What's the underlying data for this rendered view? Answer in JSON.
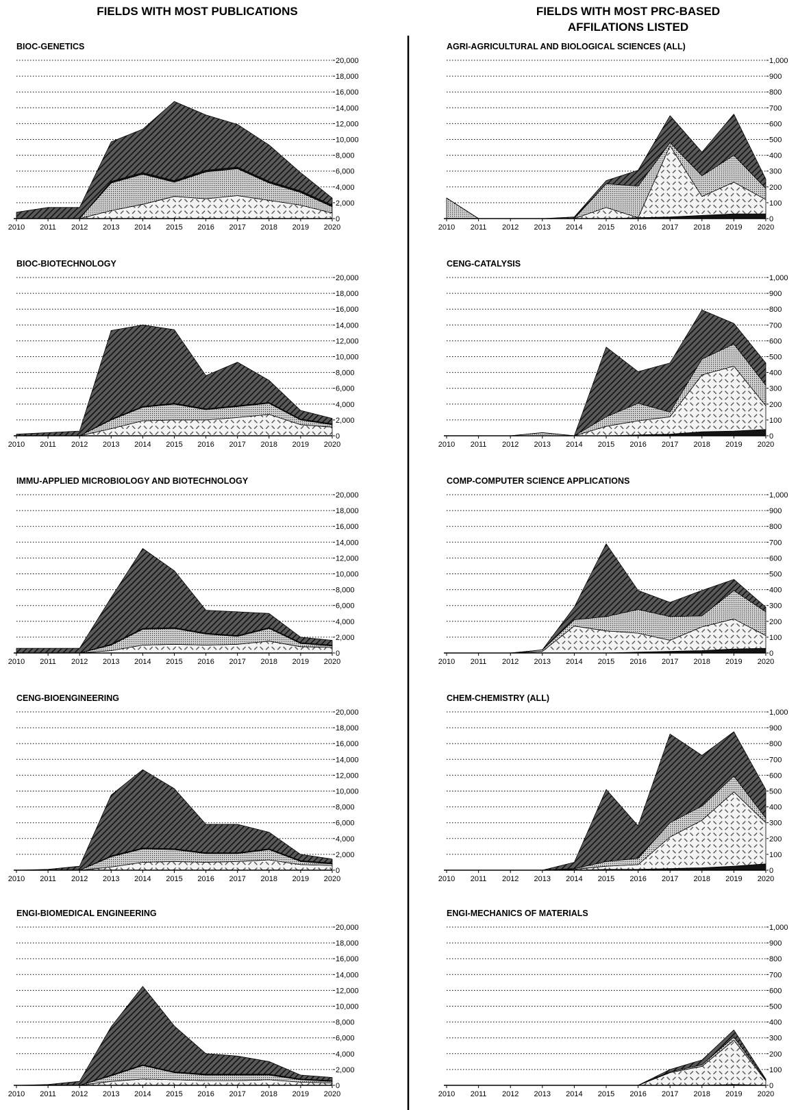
{
  "left_column": {
    "title": "FIELDS WITH MOST PUBLICATIONS"
  },
  "right_column": {
    "title_line1": "FIELDS WITH MOST PRC-BASED",
    "title_line2": "AFFILATIONS LISTED"
  },
  "colors": {
    "ink": "#000000",
    "dark_fill": "#3a3a3a",
    "mid_fill": "#bdbdbd",
    "light_fill": "#ececec",
    "darkest_fill": "#111111"
  },
  "chart_data": [
    {
      "type": "area",
      "title": "BIOC-GENETICS",
      "column": "left",
      "x": [
        2010,
        2011,
        2012,
        2013,
        2014,
        2015,
        2016,
        2017,
        2018,
        2019,
        2020
      ],
      "xlabel": "",
      "ylabel": "",
      "ylim": [
        0,
        20000
      ],
      "yticks": [
        "0",
        "2,000",
        "4,000",
        "6,000",
        "8,000",
        "10,000",
        "12,000",
        "14,000",
        "16,000",
        "18,000",
        "20,000"
      ],
      "grid": true,
      "stacked": true,
      "series": [
        {
          "pattern": "diamond",
          "values": [
            0,
            0,
            0,
            1000,
            1800,
            2800,
            2500,
            2900,
            2300,
            1700,
            700
          ]
        },
        {
          "pattern": "dots",
          "values": [
            0,
            0,
            0,
            3500,
            3800,
            1800,
            3400,
            3400,
            2200,
            1600,
            800
          ]
        },
        {
          "pattern": "black",
          "values": [
            0,
            0,
            0,
            200,
            200,
            200,
            200,
            200,
            200,
            200,
            200
          ]
        },
        {
          "pattern": "hatch",
          "values": [
            800,
            1400,
            1400,
            5000,
            5500,
            10000,
            7000,
            5400,
            4600,
            2300,
            900
          ]
        }
      ]
    },
    {
      "type": "area",
      "title": "BIOC-BIOTECHNOLOGY",
      "column": "left",
      "x": [
        2010,
        2011,
        2012,
        2013,
        2014,
        2015,
        2016,
        2017,
        2018,
        2019,
        2020
      ],
      "xlabel": "",
      "ylabel": "",
      "ylim": [
        0,
        20000
      ],
      "yticks": [
        "0",
        "2,000",
        "4,000",
        "6,000",
        "8,000",
        "10,000",
        "12,000",
        "14,000",
        "16,000",
        "18,000",
        "20,000"
      ],
      "grid": true,
      "stacked": true,
      "series": [
        {
          "pattern": "diamond",
          "values": [
            0,
            0,
            0,
            900,
            1900,
            2000,
            2000,
            2300,
            2700,
            1400,
            1100
          ]
        },
        {
          "pattern": "dots",
          "values": [
            0,
            0,
            0,
            1100,
            1700,
            2000,
            1300,
            1400,
            1400,
            600,
            300
          ]
        },
        {
          "pattern": "black",
          "values": [
            0,
            0,
            0,
            100,
            100,
            100,
            100,
            100,
            100,
            100,
            100
          ]
        },
        {
          "pattern": "hatch",
          "values": [
            200,
            400,
            600,
            11200,
            10300,
            9300,
            4200,
            5500,
            2800,
            1100,
            700
          ]
        }
      ]
    },
    {
      "type": "area",
      "title": "IMMU-APPLIED MICROBIOLOGY AND BIOTECHNOLOGY",
      "column": "left",
      "x": [
        2010,
        2011,
        2012,
        2013,
        2014,
        2015,
        2016,
        2017,
        2018,
        2019,
        2020
      ],
      "xlabel": "",
      "ylabel": "",
      "ylim": [
        0,
        20000
      ],
      "yticks": [
        "0",
        "2,000",
        "4,000",
        "6,000",
        "8,000",
        "10,000",
        "12,000",
        "14,000",
        "16,000",
        "18,000",
        "20,000"
      ],
      "grid": true,
      "stacked": true,
      "series": [
        {
          "pattern": "diamond",
          "values": [
            0,
            0,
            0,
            300,
            1000,
            1100,
            1000,
            1100,
            1500,
            800,
            700
          ]
        },
        {
          "pattern": "dots",
          "values": [
            0,
            0,
            0,
            700,
            2000,
            2000,
            1400,
            1000,
            1600,
            400,
            200
          ]
        },
        {
          "pattern": "black",
          "values": [
            0,
            0,
            0,
            100,
            100,
            100,
            100,
            100,
            100,
            100,
            100
          ]
        },
        {
          "pattern": "hatch",
          "values": [
            600,
            600,
            600,
            5900,
            10100,
            7200,
            2900,
            3000,
            1800,
            700,
            600
          ]
        }
      ]
    },
    {
      "type": "area",
      "title": "CENG-BIOENGINEERING",
      "column": "left",
      "x": [
        2010,
        2011,
        2012,
        2013,
        2014,
        2015,
        2016,
        2017,
        2018,
        2019,
        2020
      ],
      "xlabel": "",
      "ylabel": "",
      "ylim": [
        0,
        20000
      ],
      "yticks": [
        "0",
        "2,000",
        "4,000",
        "6,000",
        "8,000",
        "10,000",
        "12,000",
        "14,000",
        "16,000",
        "18,000",
        "20,000"
      ],
      "grid": true,
      "stacked": true,
      "series": [
        {
          "pattern": "diamond",
          "values": [
            0,
            0,
            0,
            400,
            1000,
            1100,
            1000,
            1100,
            1300,
            700,
            600
          ]
        },
        {
          "pattern": "dots",
          "values": [
            0,
            0,
            0,
            1300,
            1700,
            1500,
            1100,
            1000,
            1300,
            400,
            200
          ]
        },
        {
          "pattern": "black",
          "values": [
            0,
            0,
            0,
            100,
            100,
            100,
            100,
            100,
            100,
            100,
            100
          ]
        },
        {
          "pattern": "hatch",
          "values": [
            0,
            100,
            500,
            7700,
            9900,
            7600,
            3600,
            3600,
            2100,
            800,
            500
          ]
        }
      ]
    },
    {
      "type": "area",
      "title": "ENGI-BIOMEDICAL ENGINEERING",
      "column": "left",
      "x": [
        2010,
        2011,
        2012,
        2013,
        2014,
        2015,
        2016,
        2017,
        2018,
        2019,
        2020
      ],
      "xlabel": "",
      "ylabel": "",
      "ylim": [
        0,
        20000
      ],
      "yticks": [
        "0",
        "2,000",
        "4,000",
        "6,000",
        "8,000",
        "10,000",
        "12,000",
        "14,000",
        "16,000",
        "18,000",
        "20,000"
      ],
      "grid": true,
      "stacked": true,
      "series": [
        {
          "pattern": "diamond",
          "values": [
            0,
            0,
            0,
            500,
            800,
            700,
            600,
            600,
            700,
            400,
            300
          ]
        },
        {
          "pattern": "dots",
          "values": [
            0,
            0,
            0,
            700,
            1700,
            900,
            700,
            700,
            600,
            300,
            200
          ]
        },
        {
          "pattern": "black",
          "values": [
            0,
            0,
            0,
            100,
            100,
            100,
            100,
            100,
            100,
            100,
            100
          ]
        },
        {
          "pattern": "hatch",
          "values": [
            0,
            100,
            500,
            6100,
            9900,
            5800,
            2600,
            2300,
            1600,
            500,
            400
          ]
        }
      ]
    },
    {
      "type": "area",
      "title": "AGRI-AGRICULTURAL AND BIOLOGICAL SCIENCES (ALL)",
      "column": "right",
      "x": [
        2010,
        2011,
        2012,
        2013,
        2014,
        2015,
        2016,
        2017,
        2018,
        2019,
        2020
      ],
      "xlabel": "",
      "ylabel": "",
      "ylim": [
        0,
        1000
      ],
      "yticks": [
        "0",
        "100",
        "200",
        "300",
        "400",
        "500",
        "600",
        "700",
        "800",
        "900",
        "1,000"
      ],
      "grid": true,
      "stacked": true,
      "series": [
        {
          "pattern": "black",
          "values": [
            0,
            0,
            0,
            0,
            0,
            0,
            5,
            10,
            20,
            30,
            30
          ]
        },
        {
          "pattern": "diamond",
          "values": [
            0,
            0,
            0,
            0,
            0,
            70,
            0,
            450,
            120,
            200,
            90
          ]
        },
        {
          "pattern": "dots",
          "values": [
            130,
            0,
            0,
            0,
            0,
            150,
            200,
            20,
            130,
            170,
            70
          ]
        },
        {
          "pattern": "hatch",
          "values": [
            0,
            0,
            0,
            0,
            10,
            20,
            100,
            170,
            150,
            260,
            60
          ]
        }
      ]
    },
    {
      "type": "area",
      "title": "CENG-CATALYSIS",
      "column": "right",
      "x": [
        2010,
        2011,
        2012,
        2013,
        2014,
        2015,
        2016,
        2017,
        2018,
        2019,
        2020
      ],
      "xlabel": "",
      "ylabel": "",
      "ylim": [
        0,
        1000
      ],
      "yticks": [
        "0",
        "100",
        "200",
        "300",
        "400",
        "500",
        "600",
        "700",
        "800",
        "900",
        "1,000"
      ],
      "grid": true,
      "stacked": true,
      "series": [
        {
          "pattern": "black",
          "values": [
            0,
            0,
            0,
            0,
            0,
            0,
            5,
            10,
            25,
            30,
            40
          ]
        },
        {
          "pattern": "diamond",
          "values": [
            0,
            0,
            0,
            0,
            0,
            60,
            90,
            110,
            360,
            410,
            150
          ]
        },
        {
          "pattern": "dots",
          "values": [
            0,
            0,
            0,
            20,
            0,
            60,
            110,
            30,
            100,
            140,
            130
          ]
        },
        {
          "pattern": "hatch",
          "values": [
            0,
            0,
            0,
            0,
            0,
            440,
            200,
            310,
            310,
            130,
            140
          ]
        }
      ]
    },
    {
      "type": "area",
      "title": "COMP-COMPUTER SCIENCE APPLICATIONS",
      "column": "right",
      "x": [
        2010,
        2011,
        2012,
        2013,
        2014,
        2015,
        2016,
        2017,
        2018,
        2019,
        2020
      ],
      "xlabel": "",
      "ylabel": "",
      "ylim": [
        0,
        1000
      ],
      "yticks": [
        "0",
        "100",
        "200",
        "300",
        "400",
        "500",
        "600",
        "700",
        "800",
        "900",
        "1,000"
      ],
      "grid": true,
      "stacked": true,
      "series": [
        {
          "pattern": "black",
          "values": [
            0,
            0,
            0,
            0,
            0,
            0,
            5,
            10,
            15,
            25,
            30
          ]
        },
        {
          "pattern": "diamond",
          "values": [
            0,
            0,
            0,
            10,
            170,
            140,
            120,
            70,
            150,
            190,
            80
          ]
        },
        {
          "pattern": "dots",
          "values": [
            0,
            0,
            0,
            10,
            40,
            90,
            150,
            150,
            70,
            180,
            150
          ]
        },
        {
          "pattern": "hatch",
          "values": [
            0,
            0,
            0,
            0,
            80,
            460,
            120,
            90,
            160,
            70,
            30
          ]
        }
      ]
    },
    {
      "type": "area",
      "title": "CHEM-CHEMISTRY (ALL)",
      "column": "right",
      "x": [
        2010,
        2011,
        2012,
        2013,
        2014,
        2015,
        2016,
        2017,
        2018,
        2019,
        2020
      ],
      "xlabel": "",
      "ylabel": "",
      "ylim": [
        0,
        1000
      ],
      "yticks": [
        "0",
        "100",
        "200",
        "300",
        "400",
        "500",
        "600",
        "700",
        "800",
        "900",
        "1,000"
      ],
      "grid": true,
      "stacked": true,
      "series": [
        {
          "pattern": "black",
          "values": [
            0,
            0,
            0,
            0,
            0,
            5,
            5,
            10,
            15,
            25,
            40
          ]
        },
        {
          "pattern": "diamond",
          "values": [
            0,
            0,
            0,
            0,
            5,
            20,
            30,
            200,
            300,
            470,
            260
          ]
        },
        {
          "pattern": "dots",
          "values": [
            0,
            0,
            0,
            0,
            5,
            30,
            40,
            90,
            90,
            100,
            30
          ]
        },
        {
          "pattern": "hatch",
          "values": [
            0,
            0,
            0,
            0,
            40,
            455,
            205,
            560,
            320,
            280,
            180
          ]
        }
      ]
    },
    {
      "type": "area",
      "title": "ENGI-MECHANICS OF MATERIALS",
      "column": "right",
      "x": [
        2010,
        2011,
        2012,
        2013,
        2014,
        2015,
        2016,
        2017,
        2018,
        2019,
        2020
      ],
      "xlabel": "",
      "ylabel": "",
      "ylim": [
        0,
        1000
      ],
      "yticks": [
        "0",
        "100",
        "200",
        "300",
        "400",
        "500",
        "600",
        "700",
        "800",
        "900",
        "1,000"
      ],
      "grid": true,
      "stacked": true,
      "series": [
        {
          "pattern": "black",
          "values": [
            0,
            0,
            0,
            0,
            0,
            0,
            0,
            0,
            0,
            5,
            0
          ]
        },
        {
          "pattern": "diamond",
          "values": [
            0,
            0,
            0,
            0,
            0,
            0,
            0,
            80,
            120,
            280,
            30
          ]
        },
        {
          "pattern": "dots",
          "values": [
            0,
            0,
            0,
            0,
            0,
            0,
            0,
            5,
            10,
            20,
            5
          ]
        },
        {
          "pattern": "hatch",
          "values": [
            0,
            0,
            0,
            0,
            0,
            0,
            0,
            15,
            30,
            45,
            5
          ]
        }
      ]
    }
  ]
}
